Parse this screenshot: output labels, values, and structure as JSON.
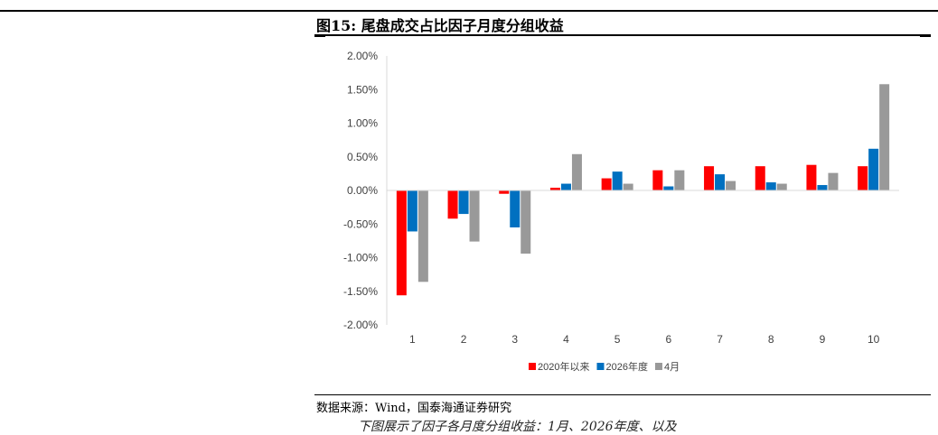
{
  "figure": {
    "title": "图15: 尾盘成交占比因子月度分组收益",
    "source": "数据来源：Wind，国泰海通证券研究",
    "next_line": "下图展示了因子各月度分组收益：1月、2026年度、以及"
  },
  "chart_data": {
    "type": "bar",
    "title": "",
    "xlabel": "",
    "ylabel": "",
    "categories": [
      "1",
      "2",
      "3",
      "4",
      "5",
      "6",
      "7",
      "8",
      "9",
      "10"
    ],
    "ylim": [
      -0.02,
      0.02
    ],
    "yticks": [
      "2.00%",
      "1.50%",
      "1.00%",
      "0.50%",
      "0.00%",
      "-0.50%",
      "-1.00%",
      "-1.50%",
      "-2.00%"
    ],
    "grid": false,
    "legend_position": "bottom",
    "series": [
      {
        "name": "2020年以来",
        "color": "#ff0000",
        "values": [
          -0.0156,
          -0.0042,
          -0.0005,
          0.0004,
          0.0018,
          0.003,
          0.0036,
          0.0036,
          0.0038,
          0.0036
        ]
      },
      {
        "name": "2026年度",
        "color": "#0070c0",
        "values": [
          -0.0061,
          -0.0035,
          -0.0055,
          0.001,
          0.0028,
          0.0006,
          0.0024,
          0.0012,
          0.0008,
          0.0062
        ]
      },
      {
        "name": "4月",
        "color": "#999999",
        "values": [
          -0.0136,
          -0.0076,
          -0.0094,
          0.0054,
          0.001,
          0.003,
          0.0014,
          0.001,
          0.0026,
          0.0158
        ]
      }
    ]
  }
}
